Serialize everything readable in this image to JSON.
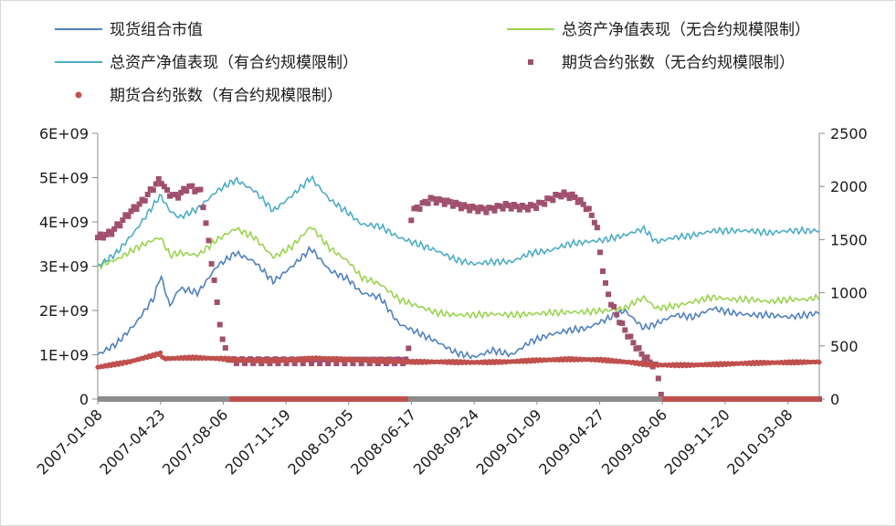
{
  "chart_data": {
    "type": "line",
    "title": "",
    "xlabel": "",
    "ylabel": "",
    "y2label": "",
    "ylim": [
      0,
      6000000000
    ],
    "y2lim": [
      0,
      2500
    ],
    "y_ticks": [
      {
        "value": 0,
        "label": "0"
      },
      {
        "value": 1000000000,
        "label": "1E+09"
      },
      {
        "value": 2000000000,
        "label": "2E+09"
      },
      {
        "value": 3000000000,
        "label": "3E+09"
      },
      {
        "value": 4000000000,
        "label": "4E+09"
      },
      {
        "value": 5000000000,
        "label": "5E+09"
      },
      {
        "value": 6000000000,
        "label": "6E+09"
      }
    ],
    "y2_ticks": [
      {
        "value": 0,
        "label": "0"
      },
      {
        "value": 500,
        "label": "500"
      },
      {
        "value": 1000,
        "label": "1000"
      },
      {
        "value": 1500,
        "label": "1500"
      },
      {
        "value": 2000,
        "label": "2000"
      },
      {
        "value": 2500,
        "label": "2500"
      }
    ],
    "x_categories": [
      "2007-01-08",
      "2007-04-23",
      "2007-08-06",
      "2007-11-19",
      "2008-03-05",
      "2008-06-17",
      "2008-09-24",
      "2009-01-09",
      "2009-04-27",
      "2009-08-06",
      "2009-11-20",
      "2010-03-08"
    ],
    "x_index_range": [
      0,
      11.5
    ],
    "legend": [
      {
        "label": "现货组合市值",
        "color": "#4f81bd",
        "marker": "line"
      },
      {
        "label": "总资产净值表现（无合约规模限制）",
        "color": "#9bd34f",
        "marker": "line"
      },
      {
        "label": "总资产净值表现（有合约规模限制）",
        "color": "#4bacc6",
        "marker": "line"
      },
      {
        "label": "期货合约张数（无合约规模限制）",
        "color": "#a0506e",
        "marker": "square"
      },
      {
        "label": "期货合约张数（有合约规模限制）",
        "color": "#c0504d",
        "marker": "dot"
      }
    ],
    "series": [
      {
        "name": "现货组合市值",
        "axis": "left",
        "color": "#4f81bd",
        "x": [
          0,
          0.3,
          0.6,
          0.9,
          1.0,
          1.15,
          1.3,
          1.6,
          1.9,
          2.2,
          2.5,
          2.8,
          3.1,
          3.4,
          3.7,
          4.0,
          4.2,
          4.5,
          4.8,
          5.1,
          5.4,
          5.7,
          6.0,
          6.3,
          6.6,
          6.9,
          7.2,
          7.5,
          7.8,
          8.1,
          8.4,
          8.7,
          8.9,
          9.2,
          9.5,
          9.8,
          10.1,
          10.4,
          10.7,
          11.0,
          11.3,
          11.5
        ],
        "values": [
          1000000000,
          1250000000,
          1700000000,
          2300000000,
          2800000000,
          2100000000,
          2500000000,
          2400000000,
          3000000000,
          3300000000,
          3100000000,
          2650000000,
          3000000000,
          3400000000,
          2900000000,
          2700000000,
          2400000000,
          2300000000,
          1700000000,
          1500000000,
          1300000000,
          1050000000,
          950000000,
          1100000000,
          1000000000,
          1300000000,
          1450000000,
          1550000000,
          1600000000,
          1800000000,
          2000000000,
          1600000000,
          1700000000,
          1900000000,
          1850000000,
          2050000000,
          1950000000,
          1900000000,
          1900000000,
          1850000000,
          1900000000,
          1950000000
        ]
      },
      {
        "name": "总资产净值表现（无合约规模限制）",
        "axis": "left",
        "color": "#9bd34f",
        "x": [
          0,
          0.3,
          0.6,
          0.9,
          1.0,
          1.15,
          1.3,
          1.6,
          1.9,
          2.2,
          2.5,
          2.8,
          3.1,
          3.4,
          3.7,
          4.0,
          4.2,
          4.5,
          4.8,
          5.1,
          5.4,
          5.7,
          6.0,
          6.3,
          6.6,
          6.9,
          7.2,
          7.5,
          7.8,
          8.1,
          8.4,
          8.7,
          8.9,
          9.2,
          9.5,
          9.8,
          10.1,
          10.4,
          10.7,
          11.0,
          11.3,
          11.5
        ],
        "values": [
          3000000000,
          3150000000,
          3400000000,
          3600000000,
          3650000000,
          3250000000,
          3300000000,
          3250000000,
          3600000000,
          3850000000,
          3650000000,
          3200000000,
          3450000000,
          3900000000,
          3400000000,
          3100000000,
          2750000000,
          2600000000,
          2250000000,
          2100000000,
          1950000000,
          1900000000,
          1900000000,
          1920000000,
          1900000000,
          1920000000,
          1950000000,
          1960000000,
          1970000000,
          2000000000,
          2050000000,
          2300000000,
          2050000000,
          2100000000,
          2200000000,
          2300000000,
          2250000000,
          2250000000,
          2200000000,
          2250000000,
          2250000000,
          2300000000
        ]
      },
      {
        "name": "总资产净值表现（有合约规模限制）",
        "axis": "left",
        "color": "#4bacc6",
        "x": [
          0,
          0.3,
          0.6,
          0.9,
          1.0,
          1.15,
          1.3,
          1.6,
          1.9,
          2.2,
          2.5,
          2.8,
          3.1,
          3.4,
          3.7,
          4.0,
          4.2,
          4.5,
          4.8,
          5.1,
          5.4,
          5.7,
          6.0,
          6.3,
          6.6,
          6.9,
          7.2,
          7.5,
          7.8,
          8.1,
          8.4,
          8.7,
          8.9,
          9.2,
          9.5,
          9.8,
          10.1,
          10.4,
          10.7,
          11.0,
          11.3,
          11.5
        ],
        "values": [
          3000000000,
          3300000000,
          3800000000,
          4400000000,
          4600000000,
          4250000000,
          4100000000,
          4300000000,
          4700000000,
          4950000000,
          4700000000,
          4250000000,
          4600000000,
          5000000000,
          4500000000,
          4200000000,
          3950000000,
          3900000000,
          3650000000,
          3500000000,
          3350000000,
          3150000000,
          3050000000,
          3100000000,
          3100000000,
          3300000000,
          3350000000,
          3500000000,
          3550000000,
          3600000000,
          3700000000,
          3850000000,
          3550000000,
          3650000000,
          3700000000,
          3800000000,
          3800000000,
          3800000000,
          3750000000,
          3800000000,
          3800000000,
          3800000000
        ]
      },
      {
        "name": "期货合约张数（无合约规模限制）",
        "axis": "right",
        "color": "#a0506e",
        "x": [
          0,
          0.2,
          0.35,
          0.5,
          0.7,
          0.9,
          1.0,
          1.1,
          1.25,
          1.45,
          1.65,
          1.85,
          1.9,
          2.0,
          2.1,
          2.3,
          2.6,
          3.0,
          3.4,
          3.8,
          4.2,
          4.6,
          4.95,
          5.0,
          5.1,
          5.3,
          5.6,
          5.9,
          6.2,
          6.5,
          6.8,
          7.0,
          7.2,
          7.4,
          7.6,
          7.8,
          7.95,
          8.0,
          8.1,
          8.2,
          8.35,
          8.5,
          8.7,
          8.9,
          9.0,
          9.5,
          10.0,
          10.5,
          11.0,
          11.5
        ],
        "values": [
          1520,
          1560,
          1650,
          1750,
          1850,
          2000,
          2070,
          1950,
          1900,
          2000,
          1950,
          1150,
          900,
          520,
          360,
          360,
          360,
          360,
          360,
          360,
          360,
          360,
          360,
          1760,
          1800,
          1880,
          1850,
          1800,
          1780,
          1820,
          1800,
          1820,
          1880,
          1930,
          1900,
          1800,
          1650,
          1400,
          1050,
          880,
          700,
          560,
          400,
          300,
          0,
          0,
          0,
          0,
          0,
          0
        ]
      },
      {
        "name": "期货合约张数（有合约规模限制）",
        "axis": "right",
        "color": "#c0504d",
        "x": [
          0,
          0.5,
          1.0,
          1.05,
          1.5,
          2.0,
          2.5,
          3.0,
          3.5,
          4.0,
          4.5,
          5.0,
          5.5,
          6.0,
          6.5,
          7.0,
          7.5,
          8.0,
          8.5,
          8.7,
          8.9,
          9.0,
          9.5,
          10.0,
          10.5,
          11.0,
          11.5
        ],
        "values": [
          300,
          350,
          430,
          380,
          390,
          380,
          360,
          365,
          385,
          370,
          360,
          350,
          350,
          345,
          350,
          365,
          375,
          370,
          345,
          330,
          320,
          320,
          320,
          330,
          340,
          345,
          350
        ]
      }
    ]
  }
}
